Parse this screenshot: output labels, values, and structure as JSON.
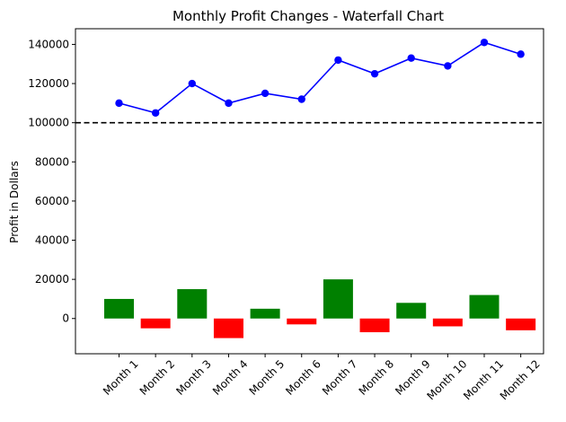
{
  "chart_data": {
    "type": "bar",
    "title": "Monthly Profit Changes - Waterfall Chart",
    "xlabel": "",
    "ylabel": "Profit in Dollars",
    "categories": [
      "Month 1",
      "Month 2",
      "Month 3",
      "Month 4",
      "Month 5",
      "Month 6",
      "Month 7",
      "Month 8",
      "Month 9",
      "Month 10",
      "Month 11",
      "Month 12"
    ],
    "ylim": [
      -18000,
      148000
    ],
    "yticks": [
      0,
      20000,
      40000,
      60000,
      80000,
      100000,
      120000,
      140000
    ],
    "ytick_labels": [
      "0",
      "20000",
      "40000",
      "60000",
      "80000",
      "100000",
      "120000",
      "140000"
    ],
    "grid": false,
    "legend": "none",
    "series": [
      {
        "kind": "bar",
        "values": [
          10000,
          -5000,
          15000,
          -10000,
          5000,
          -3000,
          20000,
          -7000,
          8000,
          -4000,
          12000,
          -6000
        ],
        "positive_color": "#008000",
        "negative_color": "#ff0000"
      },
      {
        "kind": "line",
        "values": [
          110000,
          105000,
          120000,
          110000,
          115000,
          112000,
          132000,
          125000,
          133000,
          129000,
          141000,
          135000
        ],
        "color": "#0000ff",
        "marker": "circle"
      }
    ],
    "reference_line": {
      "value": 100000,
      "style": "dashed",
      "color": "#000000"
    }
  }
}
